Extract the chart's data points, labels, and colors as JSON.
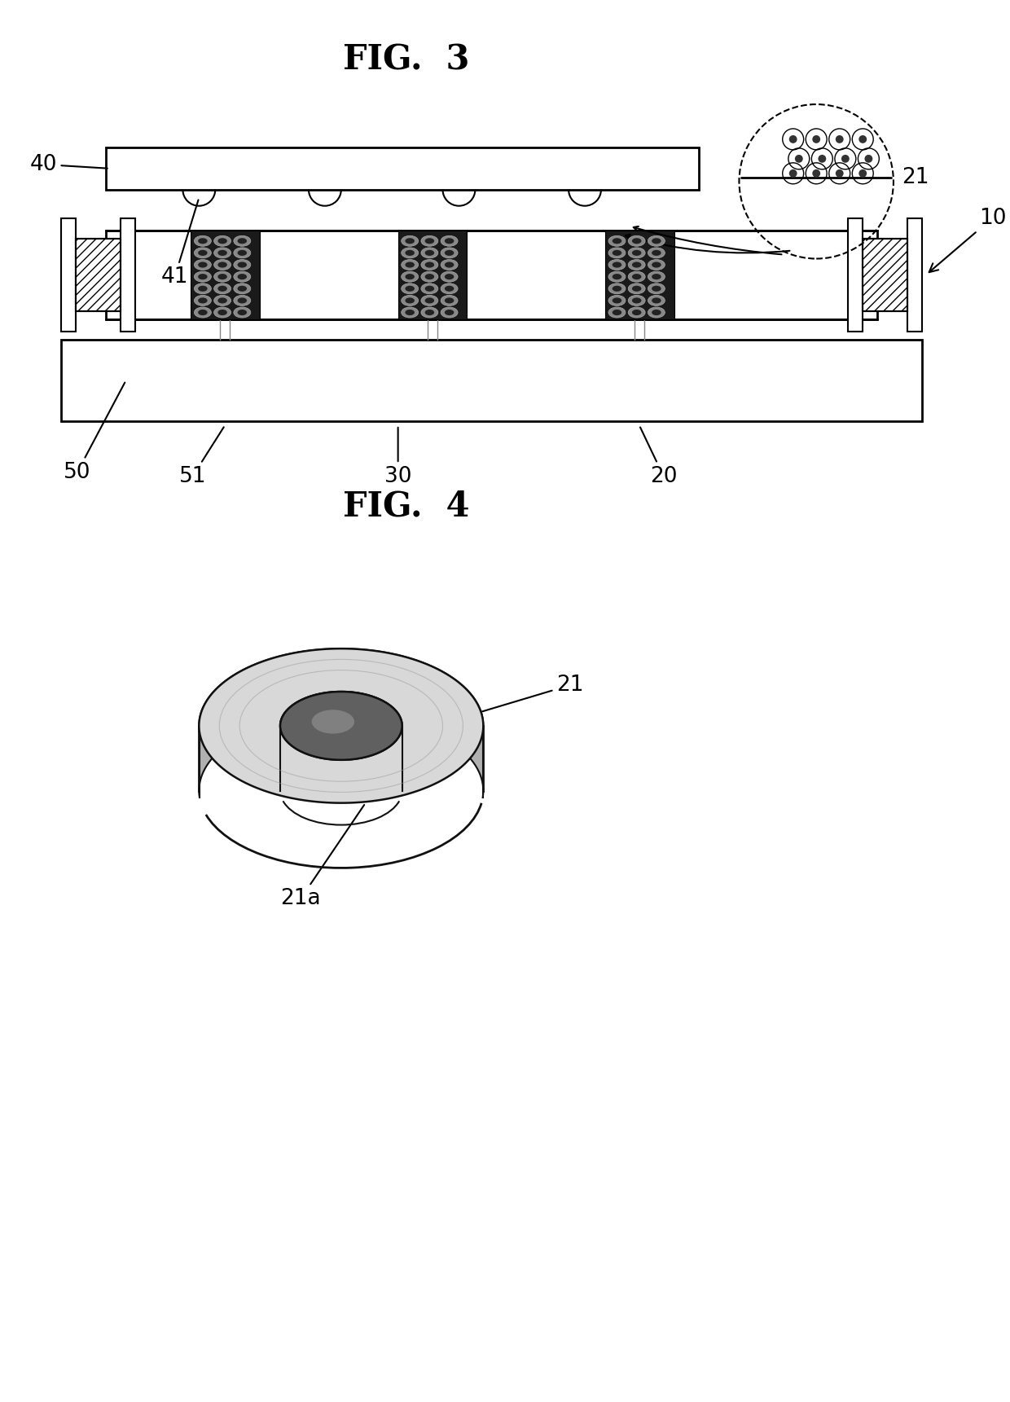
{
  "fig3_title": "FIG.  3",
  "fig4_title": "FIG.  4",
  "bg_color": "#ffffff",
  "line_color": "#000000",
  "title_fontsize": 30,
  "label_fontsize": 19
}
